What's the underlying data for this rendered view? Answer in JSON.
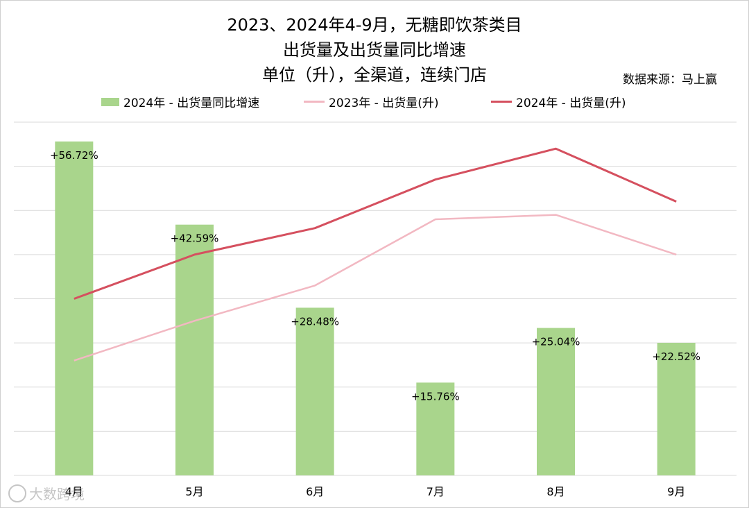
{
  "title_lines": [
    "2023、2024年4-9月，无糖即饮茶类目",
    "出货量及出货量同比增速",
    "单位（升），全渠道，连续门店"
  ],
  "source": "数据来源：马上赢",
  "watermark": "大数跨境",
  "colors": {
    "bar": "#a9d58c",
    "line2023": "#f2b8c2",
    "line2024": "#d5505f",
    "grid": "#d9d9d9"
  },
  "chart_data": {
    "type": "bar+line",
    "categories": [
      "4月",
      "5月",
      "6月",
      "7月",
      "8月",
      "9月"
    ],
    "legend": [
      "2024年 - 出货量同比增速",
      "2023年 -  出货量(升)",
      "2024年 -  出货量(升)"
    ],
    "bar_series": {
      "name": "2024年 - 出货量同比增速",
      "values": [
        56.72,
        42.59,
        28.48,
        15.76,
        25.04,
        22.52
      ],
      "labels": [
        "+56.72%",
        "+42.59%",
        "+28.48%",
        "+15.76%",
        "+25.04%",
        "+22.52%"
      ],
      "ylim": [
        0,
        60
      ]
    },
    "line_series": [
      {
        "name": "2023年 -  出货量(升)",
        "values": [
          26,
          35,
          43,
          58,
          59,
          50
        ]
      },
      {
        "name": "2024年 -  出货量(升)",
        "values": [
          40,
          50,
          56,
          67,
          74,
          62
        ]
      }
    ],
    "line_ylim": [
      0,
      80
    ],
    "grid": true,
    "legend_position": "top"
  }
}
